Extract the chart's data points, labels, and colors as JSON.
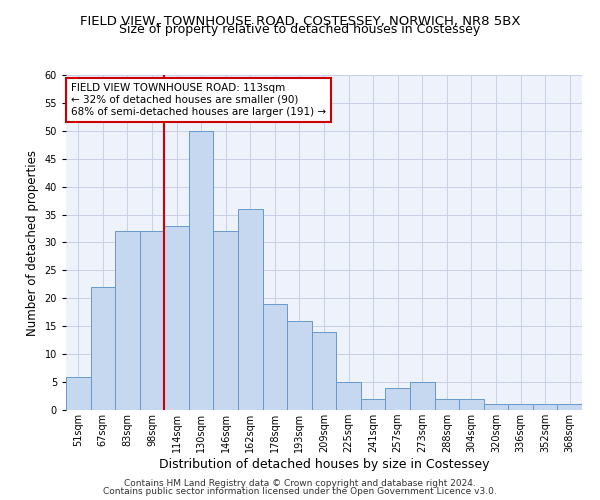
{
  "title": "FIELD VIEW, TOWNHOUSE ROAD, COSTESSEY, NORWICH, NR8 5BX",
  "subtitle": "Size of property relative to detached houses in Costessey",
  "xlabel": "Distribution of detached houses by size in Costessey",
  "ylabel": "Number of detached properties",
  "bar_labels": [
    "51sqm",
    "67sqm",
    "83sqm",
    "98sqm",
    "114sqm",
    "130sqm",
    "146sqm",
    "162sqm",
    "178sqm",
    "193sqm",
    "209sqm",
    "225sqm",
    "241sqm",
    "257sqm",
    "273sqm",
    "288sqm",
    "304sqm",
    "320sqm",
    "336sqm",
    "352sqm",
    "368sqm"
  ],
  "bar_values": [
    6,
    22,
    32,
    32,
    33,
    50,
    32,
    36,
    19,
    16,
    14,
    5,
    2,
    4,
    5,
    2,
    2,
    1,
    1,
    1,
    1
  ],
  "bar_color": "#c5d8f0",
  "bar_edgecolor": "#6699cc",
  "bar_linewidth": 0.7,
  "vline_color": "#cc0000",
  "vline_x_index": 4,
  "annotation_title": "FIELD VIEW TOWNHOUSE ROAD: 113sqm",
  "annotation_line1": "← 32% of detached houses are smaller (90)",
  "annotation_line2": "68% of semi-detached houses are larger (191) →",
  "annotation_box_facecolor": "#ffffff",
  "annotation_box_edgecolor": "#cc0000",
  "ylim": [
    0,
    60
  ],
  "yticks": [
    0,
    5,
    10,
    15,
    20,
    25,
    30,
    35,
    40,
    45,
    50,
    55,
    60
  ],
  "grid_color": "#c8d0e8",
  "background_color": "#eef2fb",
  "footer1": "Contains HM Land Registry data © Crown copyright and database right 2024.",
  "footer2": "Contains public sector information licensed under the Open Government Licence v3.0.",
  "title_fontsize": 9.5,
  "subtitle_fontsize": 9,
  "xlabel_fontsize": 9,
  "ylabel_fontsize": 8.5,
  "tick_fontsize": 7,
  "annotation_fontsize": 7.5,
  "footer_fontsize": 6.5
}
